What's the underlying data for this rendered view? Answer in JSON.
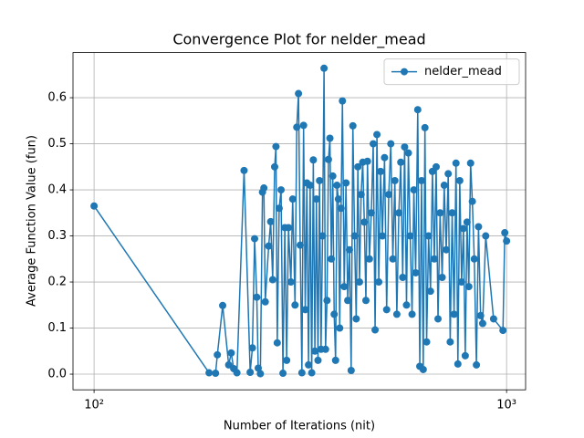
{
  "chart_data": {
    "type": "line",
    "title": "Convergence Plot for nelder_mead",
    "xlabel": "Number of Iterations (nit)",
    "ylabel": "Average Function Value (fun)",
    "xscale": "log",
    "xlim": [
      88.9,
      1112
    ],
    "ylim": [
      -0.034,
      0.698
    ],
    "xticks": [
      {
        "value": 100,
        "label": "10²"
      },
      {
        "value": 1000,
        "label": "10³"
      }
    ],
    "yticks": [
      {
        "value": 0,
        "label": "0.0"
      },
      0.1,
      0.2,
      0.3,
      0.4,
      0.5,
      0.6
    ],
    "grid": true,
    "legend": "upper right",
    "x": [
      100,
      190,
      197,
      199,
      205,
      212,
      215,
      218,
      222,
      231,
      239,
      242,
      245,
      248,
      250,
      253,
      256,
      258,
      260,
      265,
      268,
      271,
      274,
      276,
      278,
      281,
      284,
      287,
      290,
      293,
      296,
      300,
      303,
      307,
      310,
      313,
      316,
      319,
      322,
      325,
      328,
      331,
      334,
      337,
      340,
      343,
      346,
      349,
      352,
      355,
      358,
      361,
      364,
      367,
      370,
      373,
      376,
      379,
      382,
      385,
      388,
      391,
      394,
      397,
      400,
      404,
      408,
      412,
      416,
      420,
      424,
      428,
      432,
      436,
      440,
      444,
      448,
      452,
      456,
      460,
      465,
      470,
      475,
      480,
      485,
      490,
      495,
      500,
      506,
      512,
      518,
      524,
      530,
      536,
      542,
      548,
      554,
      560,
      566,
      572,
      578,
      584,
      590,
      596,
      602,
      609,
      616,
      622,
      628,
      634,
      640,
      647,
      654,
      661,
      668,
      675,
      682,
      690,
      698,
      706,
      714,
      722,
      730,
      738,
      746,
      754,
      762,
      770,
      778,
      786,
      794,
      802,
      810,
      818,
      826,
      835,
      845,
      855,
      865,
      875,
      890,
      930,
      980,
      990,
      1000
    ],
    "series": [
      {
        "name": "nelder_mead",
        "color": "#1f77b4",
        "values": [
          0.365,
          0.003,
          0.002,
          0.042,
          0.149,
          0.02,
          0.046,
          0.012,
          0.003,
          0.442,
          0.004,
          0.057,
          0.294,
          0.167,
          0.013,
          0.001,
          0.395,
          0.404,
          0.157,
          0.278,
          0.331,
          0.205,
          0.45,
          0.494,
          0.068,
          0.36,
          0.4,
          0.002,
          0.318,
          0.03,
          0.318,
          0.2,
          0.38,
          0.15,
          0.536,
          0.609,
          0.28,
          0.003,
          0.54,
          0.14,
          0.415,
          0.02,
          0.41,
          0.003,
          0.465,
          0.05,
          0.38,
          0.03,
          0.42,
          0.054,
          0.3,
          0.664,
          0.054,
          0.16,
          0.466,
          0.512,
          0.25,
          0.43,
          0.13,
          0.03,
          0.41,
          0.38,
          0.1,
          0.36,
          0.593,
          0.19,
          0.415,
          0.16,
          0.27,
          0.008,
          0.539,
          0.3,
          0.12,
          0.45,
          0.2,
          0.39,
          0.46,
          0.33,
          0.16,
          0.462,
          0.25,
          0.35,
          0.5,
          0.096,
          0.52,
          0.2,
          0.44,
          0.3,
          0.47,
          0.14,
          0.39,
          0.5,
          0.25,
          0.42,
          0.13,
          0.35,
          0.46,
          0.21,
          0.493,
          0.15,
          0.48,
          0.3,
          0.13,
          0.4,
          0.22,
          0.574,
          0.017,
          0.42,
          0.01,
          0.535,
          0.07,
          0.3,
          0.18,
          0.44,
          0.25,
          0.45,
          0.12,
          0.35,
          0.21,
          0.41,
          0.27,
          0.435,
          0.07,
          0.35,
          0.13,
          0.458,
          0.022,
          0.42,
          0.2,
          0.316,
          0.04,
          0.33,
          0.19,
          0.458,
          0.375,
          0.25,
          0.02,
          0.32,
          0.127,
          0.11,
          0.3,
          0.12,
          0.095,
          0.307,
          0.289
        ]
      }
    ]
  }
}
